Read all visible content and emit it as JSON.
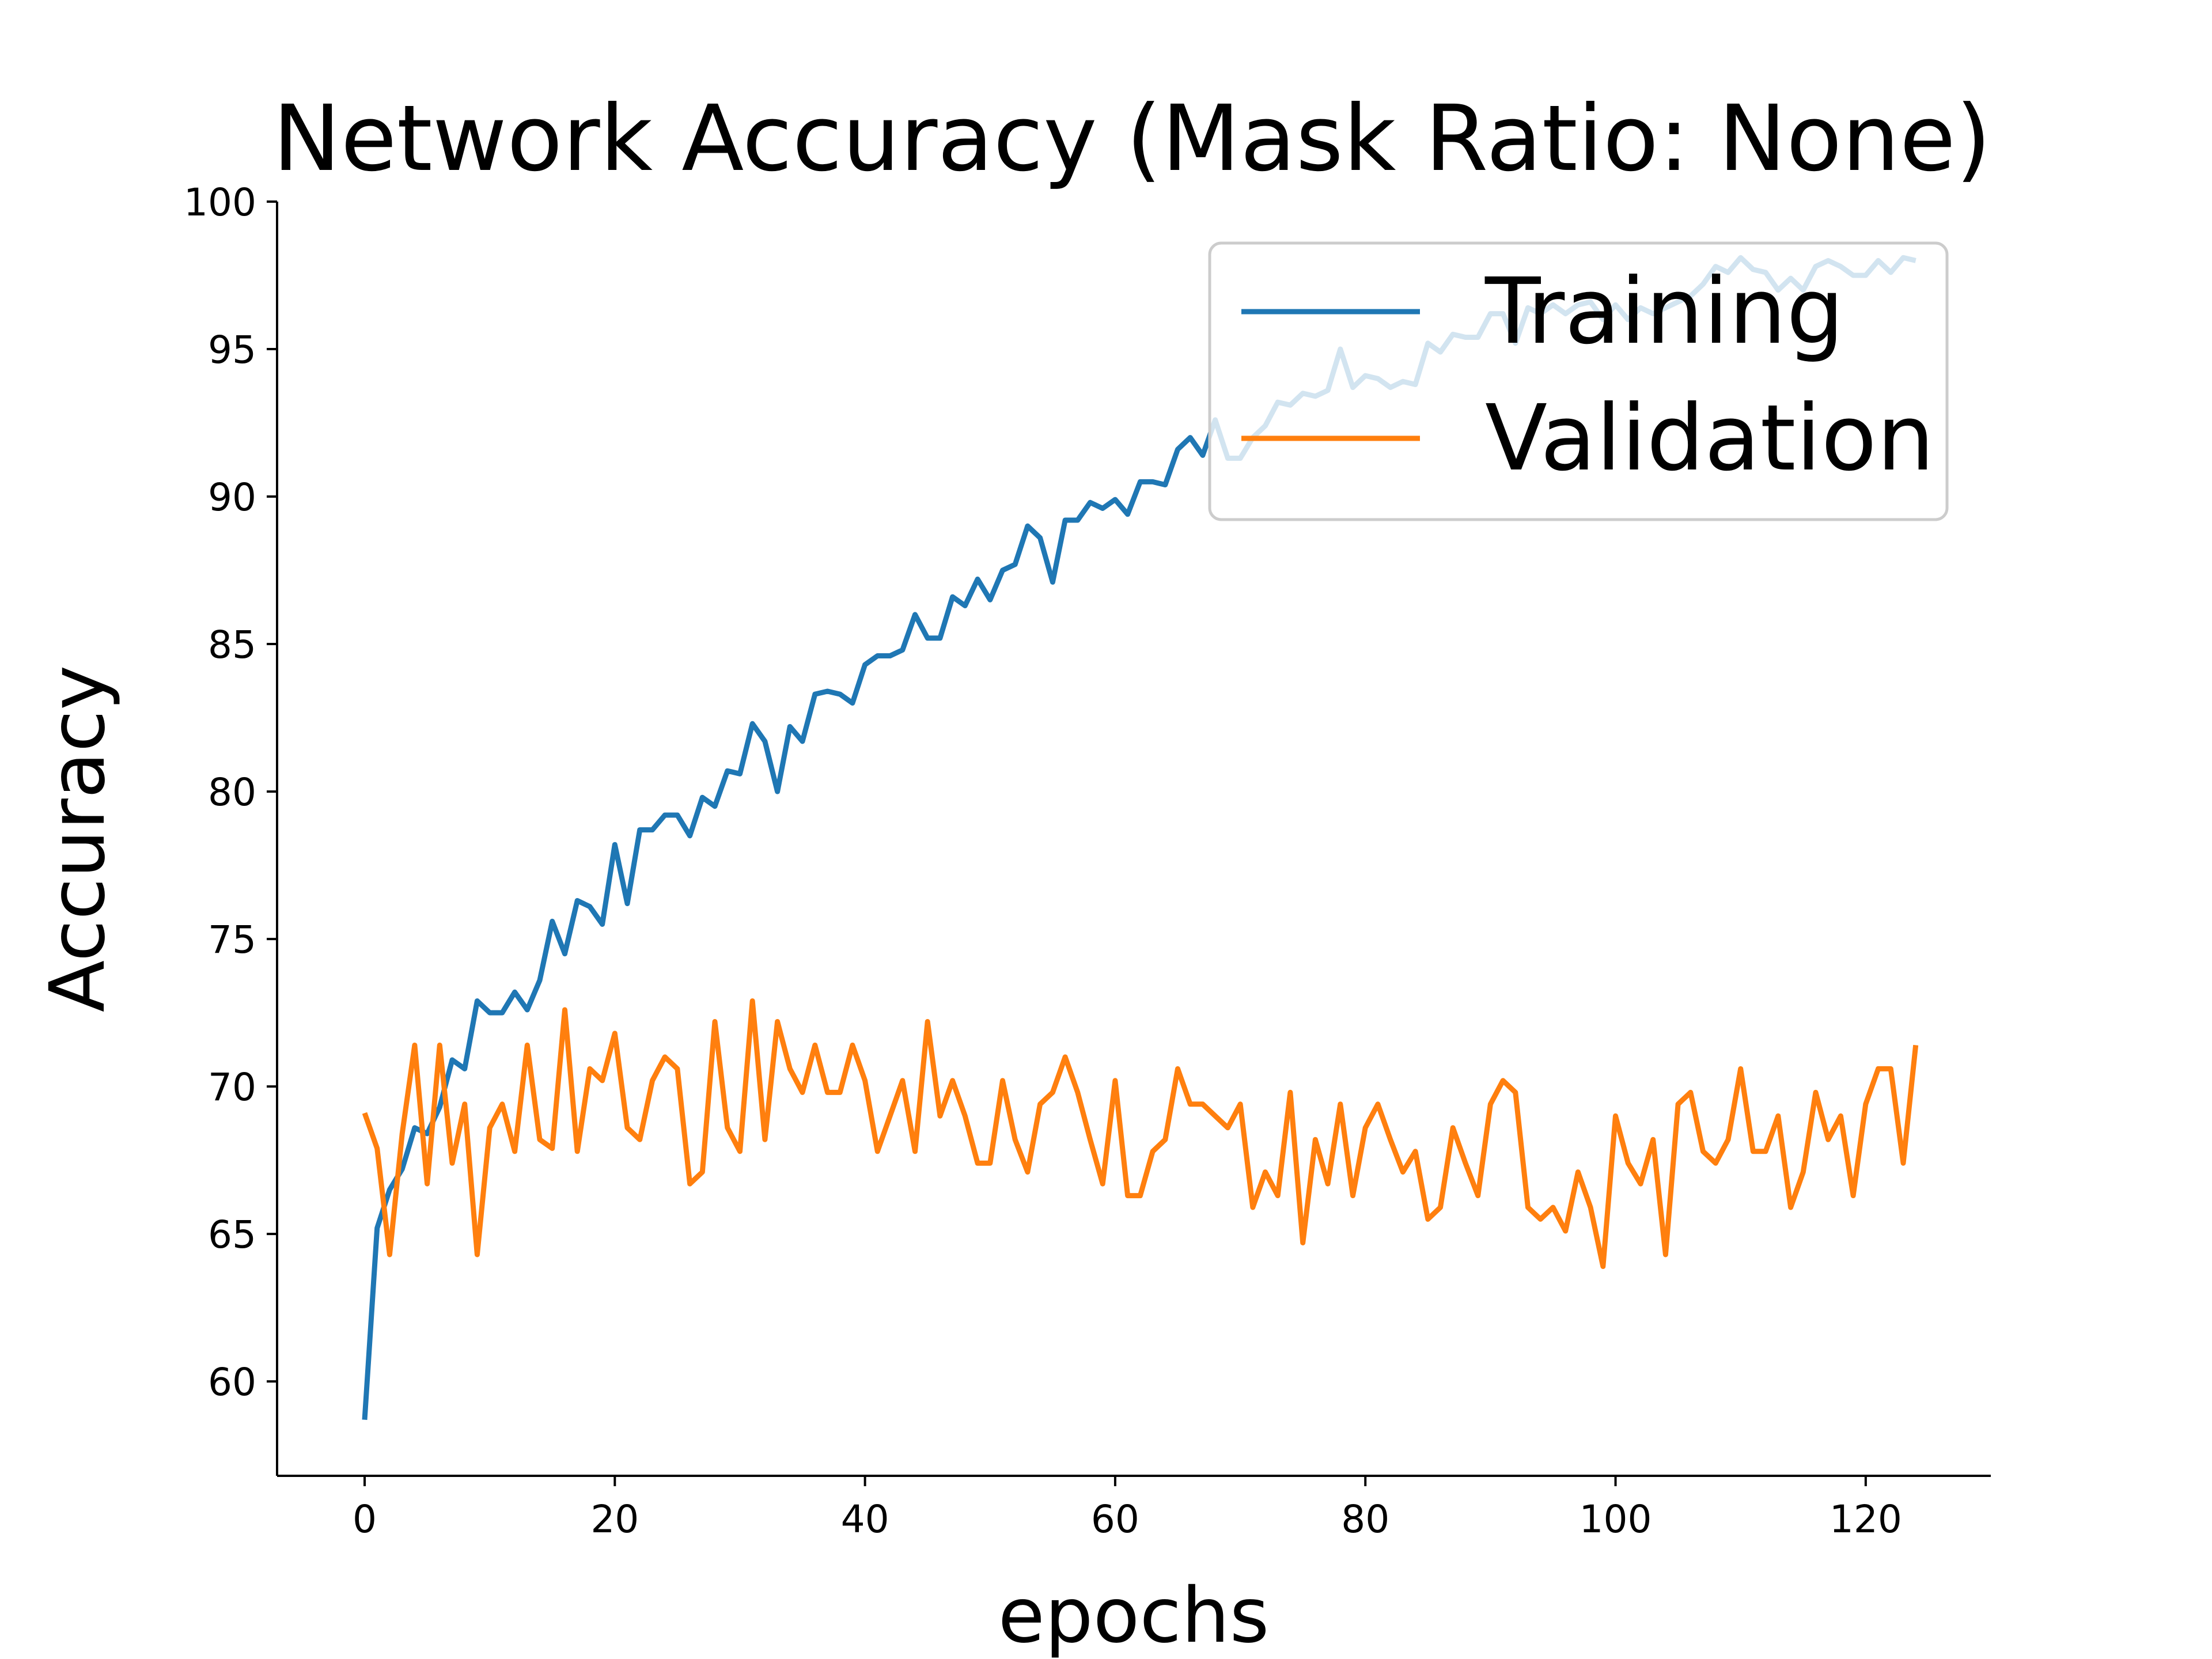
{
  "chart_data": {
    "type": "line",
    "title": "Network Accuracy (Mask Ratio: None)",
    "xlabel": "epochs",
    "ylabel": "Accuracy",
    "xlim": [
      -7,
      130
    ],
    "ylim": [
      56.8,
      100
    ],
    "xticks": [
      0,
      20,
      40,
      60,
      80,
      100,
      120
    ],
    "yticks": [
      60,
      65,
      70,
      75,
      80,
      85,
      90,
      95,
      100
    ],
    "grid": false,
    "legend_position": "top-right",
    "x": [
      0,
      1,
      2,
      3,
      4,
      5,
      6,
      7,
      8,
      9,
      10,
      11,
      12,
      13,
      14,
      15,
      16,
      17,
      18,
      19,
      20,
      21,
      22,
      23,
      24,
      25,
      26,
      27,
      28,
      29,
      30,
      31,
      32,
      33,
      34,
      35,
      36,
      37,
      38,
      39,
      40,
      41,
      42,
      43,
      44,
      45,
      46,
      47,
      48,
      49,
      50,
      51,
      52,
      53,
      54,
      55,
      56,
      57,
      58,
      59,
      60,
      61,
      62,
      63,
      64,
      65,
      66,
      67,
      68,
      69,
      70,
      71,
      72,
      73,
      74,
      75,
      76,
      77,
      78,
      79,
      80,
      81,
      82,
      83,
      84,
      85,
      86,
      87,
      88,
      89,
      90,
      91,
      92,
      93,
      94,
      95,
      96,
      97,
      98,
      99,
      100,
      101,
      102,
      103,
      104,
      105,
      106,
      107,
      108,
      109,
      110,
      111,
      112,
      113,
      114,
      115,
      116,
      117,
      118,
      119,
      120,
      121,
      122,
      123,
      124
    ],
    "series": [
      {
        "name": "Training",
        "color": "#1f77b4",
        "values": [
          58.7,
          65.2,
          66.5,
          67.2,
          68.6,
          68.4,
          69.3,
          70.9,
          70.6,
          72.9,
          72.5,
          72.5,
          73.2,
          72.6,
          73.6,
          75.6,
          74.5,
          76.3,
          76.1,
          75.5,
          78.2,
          76.2,
          78.7,
          78.7,
          79.2,
          79.2,
          78.5,
          79.8,
          79.5,
          80.7,
          80.6,
          82.3,
          81.7,
          80.0,
          82.2,
          81.7,
          83.3,
          83.4,
          83.3,
          83.0,
          84.3,
          84.6,
          84.6,
          84.8,
          86.0,
          85.2,
          85.2,
          86.6,
          86.3,
          87.2,
          86.5,
          87.5,
          87.7,
          89.0,
          88.6,
          87.1,
          89.2,
          89.2,
          89.8,
          89.6,
          89.9,
          89.4,
          90.5,
          90.5,
          90.4,
          91.6,
          92.0,
          91.4,
          92.6,
          91.3,
          91.3,
          92.0,
          92.4,
          93.2,
          93.1,
          93.5,
          93.4,
          93.6,
          95.0,
          93.7,
          94.1,
          94.0,
          93.7,
          93.9,
          93.8,
          95.2,
          94.9,
          95.5,
          95.4,
          95.4,
          96.2,
          96.2,
          95.2,
          96.4,
          96.2,
          96.5,
          96.2,
          96.5,
          96.6,
          96.0,
          96.5,
          96.0,
          96.4,
          96.2,
          96.4,
          96.6,
          96.8,
          97.2,
          97.8,
          97.6,
          98.1,
          97.7,
          97.6,
          97.0,
          97.4,
          97.0,
          97.8,
          98.0,
          97.8,
          97.5,
          97.5,
          98.0,
          97.6,
          98.1,
          98.0
        ]
      },
      {
        "name": "Validation",
        "color": "#ff7f0e",
        "values": [
          69.1,
          67.9,
          64.3,
          68.4,
          71.4,
          66.7,
          71.4,
          67.4,
          69.4,
          64.3,
          68.6,
          69.4,
          67.8,
          71.4,
          68.2,
          67.9,
          72.6,
          67.8,
          70.6,
          70.2,
          71.8,
          68.6,
          68.2,
          70.2,
          71.0,
          70.6,
          66.7,
          67.1,
          72.2,
          68.6,
          67.8,
          72.9,
          68.2,
          72.2,
          70.6,
          69.8,
          71.4,
          69.8,
          69.8,
          71.4,
          70.2,
          67.8,
          69.0,
          70.2,
          67.8,
          72.2,
          69.0,
          70.2,
          69.0,
          67.4,
          67.4,
          70.2,
          68.2,
          67.1,
          69.4,
          69.8,
          71.0,
          69.8,
          68.2,
          66.7,
          70.2,
          66.3,
          66.3,
          67.8,
          68.2,
          70.6,
          69.4,
          69.4,
          69.0,
          68.6,
          69.4,
          65.9,
          67.1,
          66.3,
          69.8,
          64.7,
          68.2,
          66.7,
          69.4,
          66.3,
          68.6,
          69.4,
          68.2,
          67.1,
          67.8,
          65.5,
          65.9,
          68.6,
          67.4,
          66.3,
          69.4,
          70.2,
          69.8,
          65.9,
          65.5,
          65.9,
          65.1,
          67.1,
          65.9,
          63.9,
          69.0,
          67.4,
          66.7,
          68.2,
          64.3,
          69.4,
          69.8,
          67.8,
          67.4,
          68.2,
          70.6,
          67.8,
          67.8,
          69.0,
          65.9,
          67.1,
          69.8,
          68.2,
          69.0,
          66.3,
          69.4,
          70.6,
          70.6,
          67.4,
          71.4
        ]
      }
    ]
  }
}
